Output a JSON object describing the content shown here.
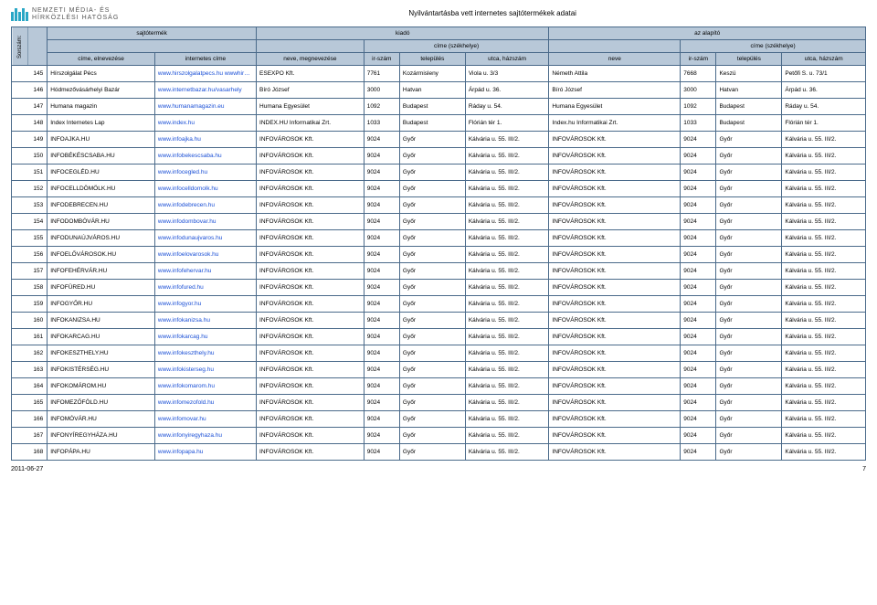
{
  "page": {
    "logo_line1": "NEMZETI MÉDIA- ÉS",
    "logo_line2": "HÍRKÖZLÉSI HATÓSÁG",
    "doc_title": "Nyilvántartásba vett internetes sajtótermékek adatai",
    "footer_date": "2011-06-27",
    "footer_page": "7"
  },
  "colors": {
    "header_bg": "#b8c8d8",
    "border": "#4a6a8a",
    "link": "#1a4fd6",
    "logo_bar": "#2aa7c6"
  },
  "headers": {
    "sorszam": "Sorszám:",
    "grp_sajtotermek": "sajtótermék",
    "grp_kiado": "kiadó",
    "grp_alapito": "az alapító",
    "sub_cime_szh": "címe (székhelye)",
    "cime_elnev": "címe, elnevezése",
    "internetes_cime": "internetes címe",
    "neve_megnev": "neve, megnevezése",
    "irszam": "ir-szám",
    "telepules": "település",
    "utca_hazszam": "utca, házszám",
    "neve": "neve"
  },
  "rows": [
    {
      "n": "145",
      "t": "Hírszolgálat Pécs",
      "u": "www.hirszolgalatpecs.hu wwwhirekpecs.hu",
      "k": "ESEXPO Kft.",
      "ki": "7761",
      "kt": "Kozármisleny",
      "ku": "Viola u. 3/3",
      "a": "Németh Attila",
      "ai": "7668",
      "at": "Keszü",
      "au": "Petőfi S. u. 73/1"
    },
    {
      "n": "146",
      "t": "Hódmezővásárhelyi Bazár",
      "u": "www.internetbazar.hu/vasarhely",
      "k": "Bíró József",
      "ki": "3000",
      "kt": "Hatvan",
      "ku": "Árpád u. 36.",
      "a": "Bíró József",
      "ai": "3000",
      "at": "Hatvan",
      "au": "Árpád u. 36."
    },
    {
      "n": "147",
      "t": "Humana magazin",
      "u": "www.humanamagazin.eu",
      "k": "Humana Egyesület",
      "ki": "1092",
      "kt": "Budapest",
      "ku": "Ráday u. 54.",
      "a": "Humana Egyesület",
      "ai": "1092",
      "at": "Budapest",
      "au": "Ráday u. 54."
    },
    {
      "n": "148",
      "t": "Index Internetes Lap",
      "u": "www.index.hu",
      "k": "INDEX.HU Informatikai Zrt.",
      "ki": "1033",
      "kt": "Budapest",
      "ku": "Flórián tér 1.",
      "a": "Index.hu Informatikai Zrt.",
      "ai": "1033",
      "at": "Budapest",
      "au": "Flórián tér 1."
    },
    {
      "n": "149",
      "t": "INFOAJKA.HU",
      "u": "www.infoajka.hu",
      "k": "INFOVÁROSOK Kft.",
      "ki": "9024",
      "kt": "Győr",
      "ku": "Kálvária u. 55. III/2.",
      "a": "INFOVÁROSOK Kft.",
      "ai": "9024",
      "at": "Győr",
      "au": "Kálvária u. 55. III/2."
    },
    {
      "n": "150",
      "t": "INFOBÉKÉSCSABA.HU",
      "u": "www.infobekescsaba.hu",
      "k": "INFOVÁROSOK Kft.",
      "ki": "9024",
      "kt": "Győr",
      "ku": "Kálvária u. 55. III/2.",
      "a": "INFOVÁROSOK Kft.",
      "ai": "9024",
      "at": "Győr",
      "au": "Kálvária u. 55. III/2."
    },
    {
      "n": "151",
      "t": "INFOCEGLÉD.HU",
      "u": "www.infocegled.hu",
      "k": "INFOVÁROSOK Kft.",
      "ki": "9024",
      "kt": "Győr",
      "ku": "Kálvária u. 55. III/2.",
      "a": "INFOVÁROSOK Kft.",
      "ai": "9024",
      "at": "Győr",
      "au": "Kálvária u. 55. III/2."
    },
    {
      "n": "152",
      "t": "INFOCELLDÖMÖLK.HU",
      "u": "www.infocelldomolk.hu",
      "k": "INFOVÁROSOK Kft.",
      "ki": "9024",
      "kt": "Győr",
      "ku": "Kálvária u. 55. III/2.",
      "a": "INFOVÁROSOK Kft.",
      "ai": "9024",
      "at": "Győr",
      "au": "Kálvária u. 55. III/2."
    },
    {
      "n": "153",
      "t": "INFODEBRECEN.HU",
      "u": "www.infodebrecen.hu",
      "k": "INFOVÁROSOK Kft.",
      "ki": "9024",
      "kt": "Győr",
      "ku": "Kálvária u. 55. III/2.",
      "a": "INFOVÁROSOK Kft.",
      "ai": "9024",
      "at": "Győr",
      "au": "Kálvária u. 55. III/2."
    },
    {
      "n": "154",
      "t": "INFODOMBÓVÁR.HU",
      "u": "www.infodombovar.hu",
      "k": "INFOVÁROSOK Kft.",
      "ki": "9024",
      "kt": "Győr",
      "ku": "Kálvária u. 55. III/2.",
      "a": "INFOVÁROSOK Kft.",
      "ai": "9024",
      "at": "Győr",
      "au": "Kálvária u. 55. III/2."
    },
    {
      "n": "155",
      "t": "INFODUNAÚJVÁROS.HU",
      "u": "www.infodunaujvaros.hu",
      "k": "INFOVÁROSOK Kft.",
      "ki": "9024",
      "kt": "Győr",
      "ku": "Kálvária u. 55. III/2.",
      "a": "INFOVÁROSOK Kft.",
      "ai": "9024",
      "at": "Győr",
      "au": "Kálvária u. 55. III/2."
    },
    {
      "n": "156",
      "t": "INFOELŐVÁROSOK.HU",
      "u": "www.infoelovarosok.hu",
      "k": "INFOVÁROSOK Kft.",
      "ki": "9024",
      "kt": "Győr",
      "ku": "Kálvária u. 55. III/2.",
      "a": "INFOVÁROSOK Kft.",
      "ai": "9024",
      "at": "Győr",
      "au": "Kálvária u. 55. III/2."
    },
    {
      "n": "157",
      "t": "INFOFEHÉRVÁR.HU",
      "u": "www.infofehervar.hu",
      "k": "INFOVÁROSOK Kft.",
      "ki": "9024",
      "kt": "Győr",
      "ku": "Kálvária u. 55. III/2.",
      "a": "INFOVÁROSOK Kft.",
      "ai": "9024",
      "at": "Győr",
      "au": "Kálvária u. 55. III/2."
    },
    {
      "n": "158",
      "t": "INFOFÜRED.HU",
      "u": "www.infofured.hu",
      "k": "INFOVÁROSOK Kft.",
      "ki": "9024",
      "kt": "Győr",
      "ku": "Kálvária u. 55. III/2.",
      "a": "INFOVÁROSOK Kft.",
      "ai": "9024",
      "at": "Győr",
      "au": "Kálvária u. 55. III/2."
    },
    {
      "n": "159",
      "t": "INFOGYŐR.HU",
      "u": "www.infogyor.hu",
      "k": "INFOVÁROSOK Kft.",
      "ki": "9024",
      "kt": "Győr",
      "ku": "Kálvária u. 55. III/2.",
      "a": "INFOVÁROSOK Kft.",
      "ai": "9024",
      "at": "Győr",
      "au": "Kálvária u. 55. III/2."
    },
    {
      "n": "160",
      "t": "INFOKANIZSA.HU",
      "u": "www.infokanizsa.hu",
      "k": "INFOVÁROSOK Kft.",
      "ki": "9024",
      "kt": "Győr",
      "ku": "Kálvária u. 55. III/2.",
      "a": "INFOVÁROSOK Kft.",
      "ai": "9024",
      "at": "Győr",
      "au": "Kálvária u. 55. III/2."
    },
    {
      "n": "161",
      "t": "INFOKARCAG.HU",
      "u": "www.infokarcag.hu",
      "k": "INFOVÁROSOK Kft.",
      "ki": "9024",
      "kt": "Győr",
      "ku": "Kálvária u. 55. III/2.",
      "a": "INFOVÁROSOK Kft.",
      "ai": "9024",
      "at": "Győr",
      "au": "Kálvária u. 55. III/2."
    },
    {
      "n": "162",
      "t": "INFOKESZTHELY.HU",
      "u": "www.infokeszthely.hu",
      "k": "INFOVÁROSOK Kft.",
      "ki": "9024",
      "kt": "Győr",
      "ku": "Kálvária u. 55. III/2.",
      "a": "INFOVÁROSOK Kft.",
      "ai": "9024",
      "at": "Győr",
      "au": "Kálvária u. 55. III/2."
    },
    {
      "n": "163",
      "t": "INFOKISTÉRSÉG.HU",
      "u": "www.infokisterseg.hu",
      "k": "INFOVÁROSOK Kft.",
      "ki": "9024",
      "kt": "Győr",
      "ku": "Kálvária u. 55. III/2.",
      "a": "INFOVÁROSOK Kft.",
      "ai": "9024",
      "at": "Győr",
      "au": "Kálvária u. 55. III/2."
    },
    {
      "n": "164",
      "t": "INFOKOMÁROM.HU",
      "u": "www.infokomarom.hu",
      "k": "INFOVÁROSOK Kft.",
      "ki": "9024",
      "kt": "Győr",
      "ku": "Kálvária u. 55. III/2.",
      "a": "INFOVÁROSOK Kft.",
      "ai": "9024",
      "at": "Győr",
      "au": "Kálvária u. 55. III/2."
    },
    {
      "n": "165",
      "t": "INFOMEZŐFÖLD.HU",
      "u": "www.infomezofold.hu",
      "k": "INFOVÁROSOK Kft.",
      "ki": "9024",
      "kt": "Győr",
      "ku": "Kálvária u. 55. III/2.",
      "a": "INFOVÁROSOK Kft.",
      "ai": "9024",
      "at": "Győr",
      "au": "Kálvária u. 55. III/2."
    },
    {
      "n": "166",
      "t": "INFOMÓVÁR.HU",
      "u": "www.infomovar.hu",
      "k": "INFOVÁROSOK Kft.",
      "ki": "9024",
      "kt": "Győr",
      "ku": "Kálvária u. 55. III/2.",
      "a": "INFOVÁROSOK Kft.",
      "ai": "9024",
      "at": "Győr",
      "au": "Kálvária u. 55. III/2."
    },
    {
      "n": "167",
      "t": "INFONYÍREGYHÁZA.HU",
      "u": "www.infonyiregyhaza.hu",
      "k": "INFOVÁROSOK Kft.",
      "ki": "9024",
      "kt": "Győr",
      "ku": "Kálvária u. 55. III/2.",
      "a": "INFOVÁROSOK Kft.",
      "ai": "9024",
      "at": "Győr",
      "au": "Kálvária u. 55. III/2."
    },
    {
      "n": "168",
      "t": "INFOPÁPA.HU",
      "u": "www.infopapa.hu",
      "k": "INFOVÁROSOK Kft.",
      "ki": "9024",
      "kt": "Győr",
      "ku": "Kálvária u. 55. III/2.",
      "a": "INFOVÁROSOK Kft.",
      "ai": "9024",
      "at": "Győr",
      "au": "Kálvária u. 55. III/2."
    }
  ]
}
